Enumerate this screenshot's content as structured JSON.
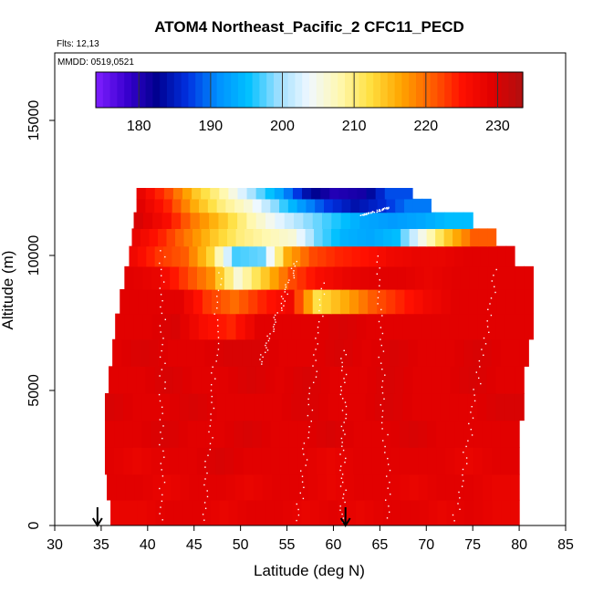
{
  "chart_data": {
    "type": "heatmap",
    "title": "ATOM4 Northeast_Pacific_2 CFC11_PECD",
    "flights_label": "Flts: 12,13",
    "date_label": "MMDD: 0519,0521",
    "xlabel": "Latitude (deg N)",
    "ylabel": "Altitude (m)",
    "xlim": [
      30,
      85
    ],
    "ylim": [
      0,
      17500
    ],
    "x_ticks": [
      "30",
      "35",
      "40",
      "45",
      "50",
      "55",
      "60",
      "65",
      "70",
      "75",
      "80",
      "85"
    ],
    "y_ticks": [
      "0",
      "5000",
      "10000",
      "15000"
    ],
    "colorbar": {
      "range": [
        174,
        233.5
      ],
      "ticks": [
        "180",
        "190",
        "200",
        "210",
        "220",
        "230"
      ],
      "colors": [
        "#7f1fff",
        "#3a00d0",
        "#00008f",
        "#0030e0",
        "#0090ff",
        "#00c0ff",
        "#a0e0ff",
        "#f0f8ff",
        "#fff8b0",
        "#ffe040",
        "#ffa500",
        "#ff6000",
        "#ff1000",
        "#e00000",
        "#b01010"
      ]
    },
    "marker_arrows_lat": [
      34.6,
      61.3
    ],
    "value_rows": [
      {
        "alt": 500,
        "lat_start": 36.0,
        "lat_end": 80.0,
        "values": [
          228,
          228,
          229,
          229,
          228,
          229,
          229,
          228,
          229,
          228,
          229,
          229,
          228,
          229,
          228
        ]
      },
      {
        "alt": 1400,
        "lat_start": 35.6,
        "lat_end": 80.0,
        "values": [
          229,
          229,
          228,
          229,
          229,
          228,
          229,
          229,
          228,
          229,
          229,
          228,
          229,
          229,
          228
        ]
      },
      {
        "alt": 2400,
        "lat_start": 35.4,
        "lat_end": 80.0,
        "values": [
          229,
          228,
          229,
          229,
          230,
          229,
          229,
          229,
          228,
          229,
          229,
          229,
          229,
          228,
          229
        ]
      },
      {
        "alt": 3400,
        "lat_start": 35.4,
        "lat_end": 80.0,
        "values": [
          229,
          229,
          230,
          229,
          229,
          230,
          229,
          229,
          230,
          229,
          229,
          230,
          229,
          229,
          229
        ]
      },
      {
        "alt": 4400,
        "lat_start": 35.4,
        "lat_end": 80.5,
        "values": [
          230,
          229,
          229,
          230,
          229,
          229,
          229,
          230,
          229,
          229,
          230,
          229,
          229,
          229,
          230
        ]
      },
      {
        "alt": 5400,
        "lat_start": 35.8,
        "lat_end": 80.5,
        "values": [
          229,
          229,
          230,
          229,
          229,
          230,
          229,
          230,
          229,
          229,
          230,
          229,
          229,
          230,
          229
        ]
      },
      {
        "alt": 6400,
        "lat_start": 36.2,
        "lat_end": 81.0,
        "values": [
          229,
          230,
          229,
          229,
          230,
          230,
          229,
          229,
          230,
          229,
          230,
          229,
          229,
          230,
          229
        ]
      },
      {
        "alt": 7400,
        "lat_start": 36.5,
        "lat_end": 81.5,
        "values": [
          229,
          229,
          230,
          226,
          224,
          229,
          229,
          229,
          230,
          229,
          229,
          229,
          229,
          229,
          229
        ]
      },
      {
        "alt": 8300,
        "lat_start": 37.0,
        "lat_end": 81.5,
        "values": [
          229,
          229,
          229,
          223,
          220,
          224,
          227,
          212,
          216,
          221,
          224,
          227,
          229,
          229,
          229
        ]
      },
      {
        "alt": 9200,
        "lat_start": 37.5,
        "lat_end": 81.5,
        "values": [
          229,
          228,
          223,
          218,
          206,
          214,
          222,
          226,
          228,
          229,
          229,
          228,
          229,
          229,
          229
        ]
      },
      {
        "alt": 10000,
        "lat_start": 38.0,
        "lat_end": 79.5,
        "values": [
          227,
          223,
          221,
          213,
          197,
          198,
          216,
          222,
          224,
          225,
          227,
          228,
          228,
          229,
          229
        ]
      },
      {
        "alt": 10700,
        "lat_start": 38.3,
        "lat_end": 77.5,
        "values": [
          228,
          224,
          219,
          214,
          210,
          208,
          206,
          198,
          194,
          193,
          195,
          205,
          214,
          221
        ]
      },
      {
        "alt": 11300,
        "lat_start": 38.5,
        "lat_end": 75.0,
        "values": [
          230,
          226,
          219,
          214,
          208,
          203,
          199,
          196,
          193,
          192,
          193,
          195
        ]
      },
      {
        "alt": 11900,
        "lat_start": 38.8,
        "lat_end": 70.5,
        "values": [
          229,
          224,
          216,
          210,
          206,
          199,
          192,
          187,
          184,
          186,
          190
        ]
      },
      {
        "alt": 12300,
        "lat_start": 38.8,
        "lat_end": 68.5,
        "values": [
          228,
          222,
          214,
          208,
          200,
          193,
          184,
          180,
          181,
          188
        ]
      }
    ]
  }
}
